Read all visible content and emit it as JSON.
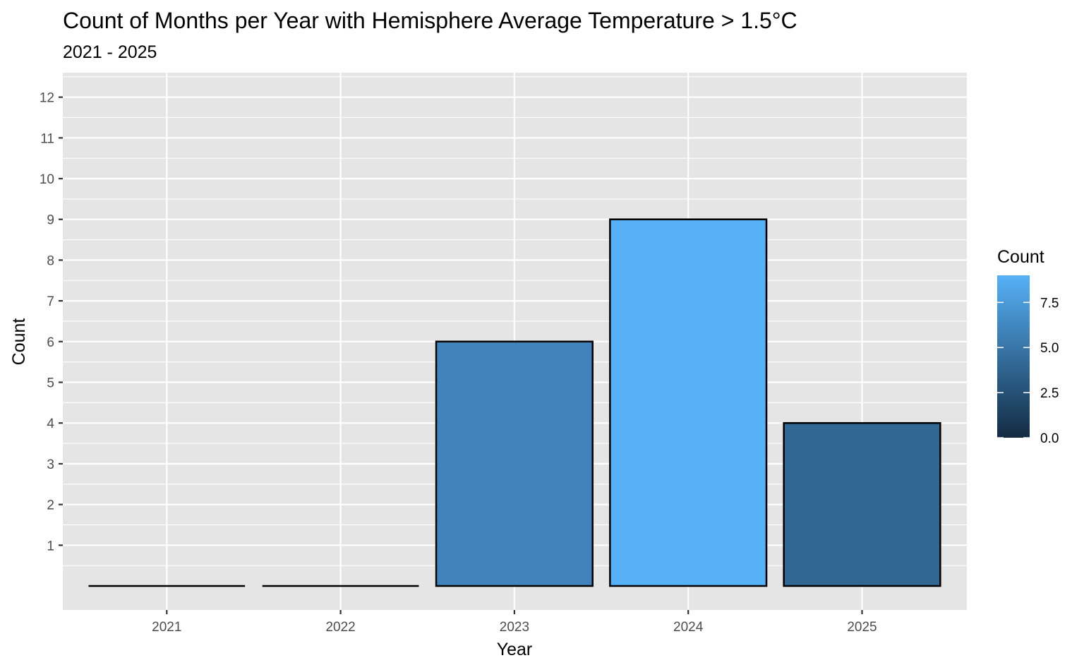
{
  "chart_data": {
    "type": "bar",
    "title": "Count of Months per Year with Hemisphere Average Temperature > 1.5°C",
    "subtitle": "2021 - 2025",
    "xlabel": "Year",
    "ylabel": "Count",
    "categories": [
      "2021",
      "2022",
      "2023",
      "2024",
      "2025"
    ],
    "values": [
      0,
      0,
      6,
      9,
      4
    ],
    "ylim": [
      0,
      12
    ],
    "y_ticks": [
      1,
      2,
      3,
      4,
      5,
      6,
      7,
      8,
      9,
      10,
      11,
      12
    ],
    "grid": true,
    "fill_scale": {
      "title": "Count",
      "low_color": "#132B43",
      "high_color": "#56B1F7",
      "domain": [
        0,
        9
      ],
      "breaks": [
        0.0,
        2.5,
        5.0,
        7.5
      ],
      "labels": [
        "0.0",
        "2.5",
        "5.0",
        "7.5"
      ]
    },
    "legend_position": "right",
    "panel_background": "#E5E5E5",
    "bar_outline": "#000000"
  }
}
